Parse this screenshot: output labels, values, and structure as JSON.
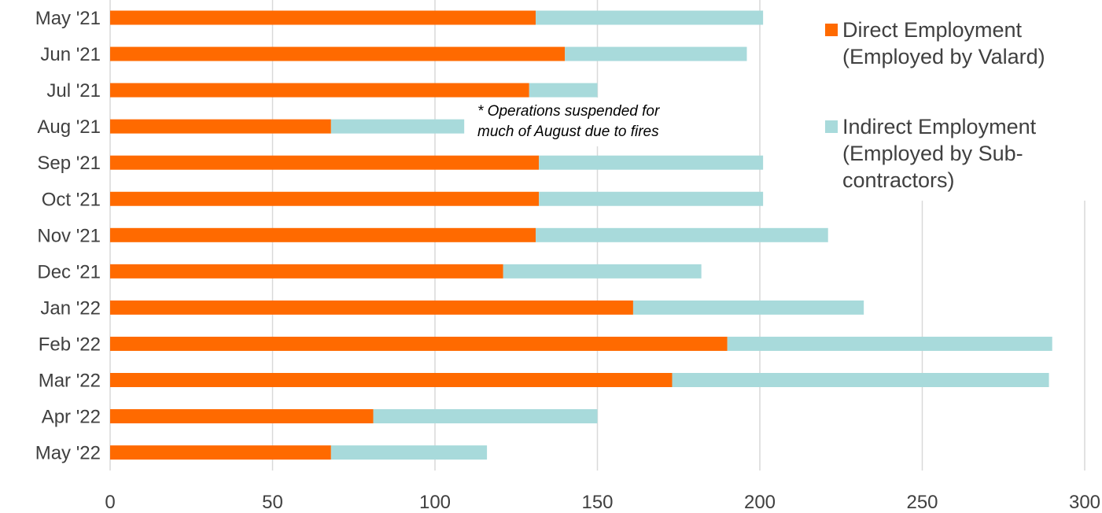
{
  "chart_data": {
    "type": "bar",
    "orientation": "horizontal",
    "stacked": true,
    "categories": [
      "May '21",
      "Jun '21",
      "Jul '21",
      "Aug '21",
      "Sep '21",
      "Oct '21",
      "Nov '21",
      "Dec '21",
      "Jan '22",
      "Feb '22",
      "Mar '22",
      "Apr '22",
      "May '22"
    ],
    "series": [
      {
        "name": "Direct Employment (Employed by Valard)",
        "legend_lines": [
          "Direct Employment",
          "(Employed by Valard)"
        ],
        "color": "#ff6a00",
        "values": [
          131,
          140,
          129,
          68,
          132,
          132,
          131,
          121,
          161,
          190,
          173,
          81,
          68
        ]
      },
      {
        "name": "Indirect Employment (Employed by Sub-contractors)",
        "legend_lines": [
          "Indirect Employment",
          "(Employed by Sub-",
          "contractors)"
        ],
        "color": "#a8dadb",
        "values": [
          70,
          56,
          21,
          41,
          69,
          69,
          90,
          61,
          71,
          100,
          116,
          69,
          48
        ]
      }
    ],
    "xlim": [
      0,
      300
    ],
    "xticks": [
      "0",
      "50",
      "100",
      "150",
      "200",
      "250",
      "300"
    ],
    "xtick_values": [
      0,
      50,
      100,
      150,
      200,
      250,
      300
    ],
    "grid": true,
    "legend_position": "right",
    "annotation_lines": [
      "* Operations suspended for",
      "much of August due to fires"
    ],
    "title": "",
    "xlabel": "",
    "ylabel": ""
  }
}
